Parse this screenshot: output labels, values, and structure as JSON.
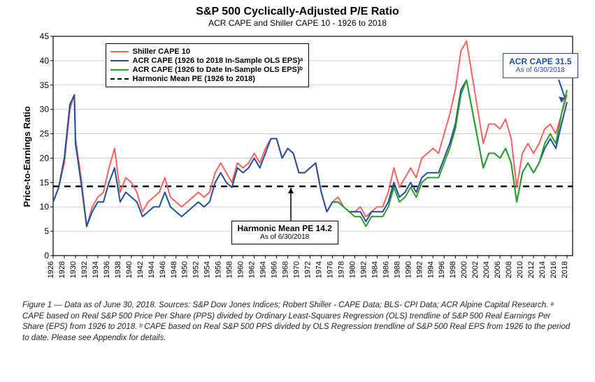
{
  "title": "S&P 500 Cyclically-Adjusted P/E Ratio",
  "subtitle": "ACR CAPE and Shiller CAPE 10 - 1926 to 2018",
  "ylabel": "Price-to-Earnings Ratio",
  "xlim": [
    1926,
    2019
  ],
  "ylim": [
    0,
    45
  ],
  "ytick_step": 5,
  "xticks": [
    1926,
    1928,
    1930,
    1932,
    1934,
    1936,
    1938,
    1940,
    1942,
    1944,
    1946,
    1948,
    1950,
    1952,
    1954,
    1956,
    1958,
    1960,
    1962,
    1964,
    1966,
    1968,
    1970,
    1972,
    1974,
    1976,
    1978,
    1980,
    1982,
    1984,
    1986,
    1988,
    1990,
    1992,
    1994,
    1996,
    1998,
    2000,
    2002,
    2004,
    2006,
    2008,
    2010,
    2012,
    2014,
    2016,
    2018
  ],
  "grid_color": "#d0d0d0",
  "axis_color": "#000",
  "background": "#ffffff",
  "harmonic_mean": 14.2,
  "legend": {
    "items": [
      {
        "label": "Shiller CAPE 10",
        "color": "#ff6060",
        "dash": false
      },
      {
        "label": "ACR CAPE (1926 to 2018 In-Sample OLS EPS)ᵃ",
        "color": "#1f4e9c",
        "dash": false
      },
      {
        "label": "ACR CAPE (1926 to Date In-Sample OLS EPS)ᵇ",
        "color": "#2aa02a",
        "dash": false
      },
      {
        "label": "Harmonic Mean PE (1926 to 2018)",
        "color": "#000000",
        "dash": true
      }
    ]
  },
  "callout": {
    "main": "ACR CAPE 31.5",
    "sub": "As of 6/30/2018"
  },
  "annot": {
    "main": "Harmonic Mean PE 14.2",
    "sub": "As of 6/30/2018"
  },
  "series": {
    "shiller": {
      "color": "#ff6060",
      "width": 2,
      "pts": [
        [
          1926,
          11
        ],
        [
          1927,
          14
        ],
        [
          1928,
          19
        ],
        [
          1929,
          30
        ],
        [
          1929.8,
          33
        ],
        [
          1930,
          24
        ],
        [
          1931,
          16
        ],
        [
          1932,
          6
        ],
        [
          1933,
          10
        ],
        [
          1934,
          12
        ],
        [
          1935,
          13
        ],
        [
          1936,
          18
        ],
        [
          1937,
          22
        ],
        [
          1938,
          13
        ],
        [
          1939,
          16
        ],
        [
          1940,
          15
        ],
        [
          1941,
          13
        ],
        [
          1942,
          9
        ],
        [
          1943,
          11
        ],
        [
          1944,
          12
        ],
        [
          1945,
          13
        ],
        [
          1946,
          16
        ],
        [
          1947,
          12
        ],
        [
          1948,
          11
        ],
        [
          1949,
          10
        ],
        [
          1950,
          11
        ],
        [
          1951,
          12
        ],
        [
          1952,
          13
        ],
        [
          1953,
          12
        ],
        [
          1954,
          13
        ],
        [
          1955,
          17
        ],
        [
          1956,
          19
        ],
        [
          1957,
          17
        ],
        [
          1958,
          15
        ],
        [
          1959,
          19
        ],
        [
          1960,
          18
        ],
        [
          1961,
          19
        ],
        [
          1962,
          21
        ],
        [
          1963,
          19
        ],
        [
          1964,
          22
        ],
        [
          1965,
          24
        ],
        [
          1966,
          24
        ],
        [
          1967,
          20
        ],
        [
          1968,
          22
        ],
        [
          1969,
          21
        ],
        [
          1970,
          17
        ],
        [
          1971,
          17
        ],
        [
          1972,
          18
        ],
        [
          1973,
          19
        ],
        [
          1974,
          13
        ],
        [
          1975,
          9
        ],
        [
          1976,
          11
        ],
        [
          1977,
          12
        ],
        [
          1978,
          10
        ],
        [
          1979,
          9
        ],
        [
          1980,
          9
        ],
        [
          1981,
          10
        ],
        [
          1982,
          8
        ],
        [
          1983,
          9
        ],
        [
          1984,
          10
        ],
        [
          1985,
          10
        ],
        [
          1986,
          13
        ],
        [
          1987,
          18
        ],
        [
          1988,
          14
        ],
        [
          1989,
          16
        ],
        [
          1990,
          18
        ],
        [
          1991,
          16
        ],
        [
          1992,
          20
        ],
        [
          1993,
          21
        ],
        [
          1994,
          22
        ],
        [
          1995,
          21
        ],
        [
          1996,
          25
        ],
        [
          1997,
          29
        ],
        [
          1998,
          34
        ],
        [
          1999,
          42
        ],
        [
          2000,
          44
        ],
        [
          2001,
          37
        ],
        [
          2002,
          30
        ],
        [
          2003,
          23
        ],
        [
          2004,
          27
        ],
        [
          2005,
          27
        ],
        [
          2006,
          26
        ],
        [
          2007,
          28
        ],
        [
          2008,
          24
        ],
        [
          2009,
          14
        ],
        [
          2010,
          21
        ],
        [
          2011,
          23
        ],
        [
          2012,
          21
        ],
        [
          2013,
          23
        ],
        [
          2014,
          26
        ],
        [
          2015,
          27
        ],
        [
          2016,
          25
        ],
        [
          2017,
          29
        ],
        [
          2018,
          33
        ]
      ]
    },
    "acr_full": {
      "color": "#1f4e9c",
      "width": 2,
      "pts": [
        [
          1926,
          11
        ],
        [
          1927,
          14
        ],
        [
          1928,
          20
        ],
        [
          1929,
          31
        ],
        [
          1929.8,
          33
        ],
        [
          1930,
          23
        ],
        [
          1931,
          15
        ],
        [
          1932,
          6
        ],
        [
          1933,
          9
        ],
        [
          1934,
          11
        ],
        [
          1935,
          11
        ],
        [
          1936,
          15
        ],
        [
          1937,
          18
        ],
        [
          1938,
          11
        ],
        [
          1939,
          13
        ],
        [
          1940,
          12
        ],
        [
          1941,
          11
        ],
        [
          1942,
          8
        ],
        [
          1943,
          9
        ],
        [
          1944,
          10
        ],
        [
          1945,
          10
        ],
        [
          1946,
          13
        ],
        [
          1947,
          10
        ],
        [
          1948,
          9
        ],
        [
          1949,
          8
        ],
        [
          1950,
          9
        ],
        [
          1951,
          10
        ],
        [
          1952,
          11
        ],
        [
          1953,
          10
        ],
        [
          1954,
          11
        ],
        [
          1955,
          15
        ],
        [
          1956,
          17
        ],
        [
          1957,
          15
        ],
        [
          1958,
          14
        ],
        [
          1959,
          18
        ],
        [
          1960,
          17
        ],
        [
          1961,
          18
        ],
        [
          1962,
          20
        ],
        [
          1963,
          18
        ],
        [
          1964,
          21
        ],
        [
          1965,
          24
        ],
        [
          1966,
          24
        ],
        [
          1967,
          20
        ],
        [
          1968,
          22
        ],
        [
          1969,
          21
        ],
        [
          1970,
          17
        ],
        [
          1971,
          17
        ],
        [
          1972,
          18
        ],
        [
          1973,
          19
        ],
        [
          1974,
          13
        ],
        [
          1975,
          9
        ],
        [
          1976,
          11
        ],
        [
          1977,
          11
        ],
        [
          1978,
          10
        ],
        [
          1979,
          9
        ],
        [
          1980,
          9
        ],
        [
          1981,
          9
        ],
        [
          1982,
          7
        ],
        [
          1983,
          9
        ],
        [
          1984,
          9
        ],
        [
          1985,
          9
        ],
        [
          1986,
          11
        ],
        [
          1987,
          15
        ],
        [
          1988,
          12
        ],
        [
          1989,
          13
        ],
        [
          1990,
          15
        ],
        [
          1991,
          13
        ],
        [
          1992,
          16
        ],
        [
          1993,
          17
        ],
        [
          1994,
          17
        ],
        [
          1995,
          17
        ],
        [
          1996,
          20
        ],
        [
          1997,
          23
        ],
        [
          1998,
          27
        ],
        [
          1999,
          34
        ],
        [
          2000,
          36
        ],
        [
          2001,
          30
        ],
        [
          2002,
          24
        ],
        [
          2003,
          18
        ],
        [
          2004,
          21
        ],
        [
          2005,
          21
        ],
        [
          2006,
          20
        ],
        [
          2007,
          22
        ],
        [
          2008,
          19
        ],
        [
          2009,
          11
        ],
        [
          2010,
          17
        ],
        [
          2011,
          19
        ],
        [
          2012,
          17
        ],
        [
          2013,
          19
        ],
        [
          2014,
          22
        ],
        [
          2015,
          24
        ],
        [
          2016,
          22
        ],
        [
          2017,
          27
        ],
        [
          2018,
          31.5
        ]
      ]
    },
    "acr_todate": {
      "color": "#2aa02a",
      "width": 2,
      "pts": [
        [
          1976,
          11
        ],
        [
          1977,
          11
        ],
        [
          1978,
          10
        ],
        [
          1979,
          9
        ],
        [
          1980,
          8
        ],
        [
          1981,
          8
        ],
        [
          1982,
          6
        ],
        [
          1983,
          8
        ],
        [
          1984,
          8
        ],
        [
          1985,
          8
        ],
        [
          1986,
          10
        ],
        [
          1987,
          14
        ],
        [
          1988,
          11
        ],
        [
          1989,
          12
        ],
        [
          1990,
          14
        ],
        [
          1991,
          12
        ],
        [
          1992,
          15
        ],
        [
          1993,
          16
        ],
        [
          1994,
          16
        ],
        [
          1995,
          16
        ],
        [
          1996,
          19
        ],
        [
          1997,
          22
        ],
        [
          1998,
          26
        ],
        [
          1999,
          33
        ],
        [
          2000,
          36
        ],
        [
          2001,
          30
        ],
        [
          2002,
          24
        ],
        [
          2003,
          18
        ],
        [
          2004,
          21
        ],
        [
          2005,
          21
        ],
        [
          2006,
          20
        ],
        [
          2007,
          22
        ],
        [
          2008,
          19
        ],
        [
          2009,
          11
        ],
        [
          2010,
          17
        ],
        [
          2011,
          19
        ],
        [
          2012,
          17
        ],
        [
          2013,
          19
        ],
        [
          2014,
          23
        ],
        [
          2015,
          25
        ],
        [
          2016,
          23
        ],
        [
          2017,
          29
        ],
        [
          2018,
          34
        ]
      ]
    }
  },
  "caption": "Figure 1 — Data as of June 30, 2018. Sources: S&P Dow Jones Indices; Robert Shiller - CAPE Data;  BLS- CPI Data; ACR Alpine Capital Research. ᵃ CAPE based on Real S&P 500 Price Per Share (PPS) divided by Ordinary Least-Squares Regression (OLS) trendline of S&P 500 Real Earnings Per Share (EPS) from 1926 to 2018. ᵇ CAPE based on Real S&P 500 PPS divided by OLS Regression trendline of S&P 500 Real EPS from 1926 to the period to date. Please see Appendix for details."
}
